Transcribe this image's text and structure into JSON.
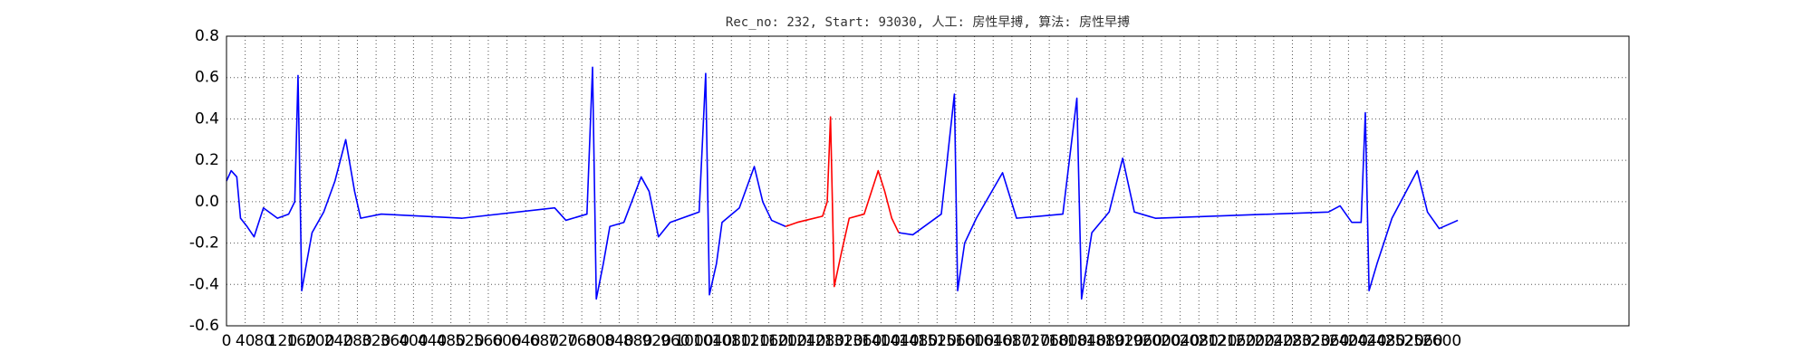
{
  "chart_data": {
    "type": "line",
    "title": "Rec_no: 232, Start: 93030, 人工: 房性早搏, 算法: 房性早搏",
    "x": [
      0,
      10,
      22,
      30,
      44,
      59,
      79,
      109,
      133,
      146,
      153,
      161,
      171,
      183,
      208,
      232,
      255,
      274,
      287,
      331,
      504,
      702,
      726,
      771,
      783,
      791,
      806,
      820,
      850,
      887,
      904,
      924,
      949,
      1011,
      1025,
      1033,
      1048,
      1060,
      1097,
      1129,
      1147,
      1166,
      1196,
      1221,
      1275,
      1285,
      1292,
      1300,
      1315,
      1332,
      1364,
      1394,
      1408,
      1423,
      1438,
      1468,
      1529,
      1557,
      1564,
      1579,
      1604,
      1660,
      1690,
      1789,
      1819,
      1829,
      1851,
      1888,
      1917,
      1942,
      1987,
      2357,
      2382,
      2407,
      2427,
      2436,
      2444,
      2461,
      2493,
      2547,
      2569,
      2594,
      2634
    ],
    "series": [
      {
        "color": "#0000ff",
        "values": [
          0.1,
          0.15,
          0.12,
          -0.08,
          -0.12,
          -0.17,
          -0.03,
          -0.08,
          -0.06,
          0.0,
          0.61,
          -0.43,
          -0.3,
          -0.15,
          -0.05,
          0.1,
          0.3,
          0.05,
          -0.08,
          -0.06,
          -0.08,
          -0.03,
          -0.09,
          -0.06,
          0.65,
          -0.47,
          -0.3,
          -0.12,
          -0.1,
          0.12,
          0.05,
          -0.17,
          -0.1,
          -0.05,
          0.62,
          -0.45,
          -0.3,
          -0.1,
          -0.03,
          0.17,
          0.0,
          -0.09,
          -0.12,
          null,
          null,
          null,
          null,
          null,
          null,
          null,
          null,
          null,
          null,
          null,
          -0.15,
          -0.16,
          -0.06,
          0.52,
          -0.43,
          -0.2,
          -0.08,
          0.14,
          -0.08,
          -0.06,
          0.5,
          -0.47,
          -0.15,
          -0.05,
          0.21,
          -0.05,
          -0.08,
          -0.05,
          -0.02,
          -0.1,
          -0.1,
          0.43,
          -0.43,
          -0.3,
          -0.08,
          0.15,
          -0.05,
          -0.13,
          -0.09
        ]
      },
      {
        "color": "#ff0000",
        "values": [
          null,
          null,
          null,
          null,
          null,
          null,
          null,
          null,
          null,
          null,
          null,
          null,
          null,
          null,
          null,
          null,
          null,
          null,
          null,
          null,
          null,
          null,
          null,
          null,
          null,
          null,
          null,
          null,
          null,
          null,
          null,
          null,
          null,
          null,
          null,
          null,
          null,
          null,
          null,
          null,
          null,
          null,
          -0.12,
          -0.1,
          -0.07,
          0.0,
          0.41,
          -0.41,
          -0.25,
          -0.08,
          -0.06,
          0.15,
          0.05,
          -0.08,
          -0.15,
          null,
          null,
          null,
          null,
          null,
          null,
          null,
          null,
          null,
          null,
          null,
          null,
          null,
          null,
          null,
          null,
          null,
          null,
          null,
          null,
          null,
          null,
          null,
          null,
          null,
          null,
          null,
          null
        ]
      }
    ],
    "xlim": [
      0,
      3000
    ],
    "xticks": [
      0,
      40,
      80,
      120,
      160,
      200,
      240,
      280,
      320,
      360,
      400,
      440,
      480,
      520,
      560,
      600,
      640,
      680,
      720,
      760,
      800,
      840,
      880,
      920,
      960,
      1000,
      1040,
      1080,
      1120,
      1160,
      1200,
      1240,
      1280,
      1320,
      1360,
      1400,
      1440,
      1480,
      1520,
      1560,
      1600,
      1640,
      1680,
      1720,
      1760,
      1800,
      1840,
      1880,
      1920,
      1960,
      2000,
      2040,
      2080,
      2120,
      2160,
      2200,
      2240,
      2280,
      2320,
      2360,
      2400,
      2440,
      2480,
      2520,
      2560,
      2600
    ],
    "ylim": [
      -0.6,
      0.8
    ],
    "yticks": [
      -0.6,
      -0.4,
      -0.2,
      {
        "value": 0,
        "label": "0.0"
      },
      0.2,
      0.4,
      0.6,
      0.8
    ],
    "grid": true
  }
}
